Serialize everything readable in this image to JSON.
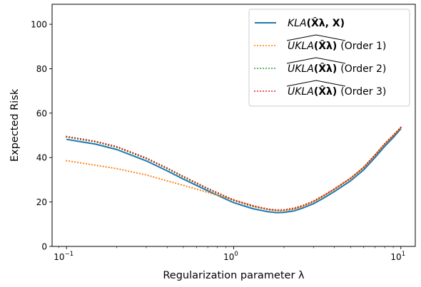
{
  "chart_data": {
    "type": "line",
    "xscale": "log",
    "xlim": [
      0.082,
      12.2
    ],
    "ylim": [
      0,
      109
    ],
    "xlabel": "Regularization parameter λ",
    "ylabel": "Expected Risk",
    "grid": false,
    "legend_position": "top-right",
    "x_ticks": [
      {
        "value": 0.1,
        "base": "10",
        "exp": "−1"
      },
      {
        "value": 1,
        "base": "10",
        "exp": "0"
      },
      {
        "value": 10,
        "base": "10",
        "exp": "1"
      }
    ],
    "y_ticks": [
      0,
      20,
      40,
      60,
      80,
      100
    ],
    "x": [
      0.1,
      0.15,
      0.2,
      0.3,
      0.4,
      0.5,
      0.7,
      1.0,
      1.3,
      1.6,
      1.8,
      2.0,
      2.3,
      2.6,
      3.0,
      3.5,
      4.0,
      5.0,
      6.0,
      7.0,
      8.0,
      9.0,
      10.0
    ],
    "series": [
      {
        "label_parts": {
          "hat": false,
          "base": "KLA",
          "arg": "(X̂λ, X)",
          "suffix": ""
        },
        "color": "#1f77b4",
        "dash": "solid",
        "values": [
          48.2,
          46.0,
          43.6,
          38.5,
          34.0,
          30.3,
          25.0,
          19.7,
          17.0,
          15.6,
          15.2,
          15.3,
          16.0,
          17.3,
          19.2,
          22.0,
          24.7,
          29.5,
          34.5,
          40.0,
          45.0,
          49.0,
          53.0
        ]
      },
      {
        "label_parts": {
          "hat": true,
          "base": "UKLA",
          "arg": "(X̂λ)",
          "suffix": "(Order 1)"
        },
        "color": "#ff7f0e",
        "dash": "dotted",
        "values": [
          38.6,
          36.5,
          35.0,
          32.2,
          29.5,
          27.5,
          24.3,
          21.0,
          18.3,
          16.6,
          16.1,
          16.0,
          16.8,
          18.0,
          20.0,
          23.0,
          25.7,
          30.6,
          35.6,
          41.0,
          46.0,
          49.8,
          53.4
        ]
      },
      {
        "label_parts": {
          "hat": true,
          "base": "UKLA",
          "arg": "(X̂λ)",
          "suffix": "(Order 2)"
        },
        "color": "#2ca02c",
        "dash": "dotted",
        "values": [
          49.2,
          47.0,
          44.6,
          39.5,
          35.0,
          31.2,
          25.8,
          20.6,
          18.0,
          16.6,
          16.2,
          16.3,
          17.0,
          18.3,
          20.2,
          23.0,
          25.7,
          30.5,
          35.5,
          41.0,
          46.0,
          49.8,
          53.4
        ]
      },
      {
        "label_parts": {
          "hat": true,
          "base": "UKLA",
          "arg": "(X̂λ)",
          "suffix": "(Order 3)"
        },
        "color": "#d62728",
        "dash": "dotted",
        "values": [
          49.5,
          47.3,
          44.9,
          39.8,
          35.3,
          31.5,
          26.1,
          20.9,
          18.3,
          16.8,
          16.4,
          16.5,
          17.2,
          18.5,
          20.4,
          23.2,
          25.9,
          30.7,
          35.7,
          41.2,
          46.2,
          50.0,
          53.6
        ]
      }
    ]
  }
}
